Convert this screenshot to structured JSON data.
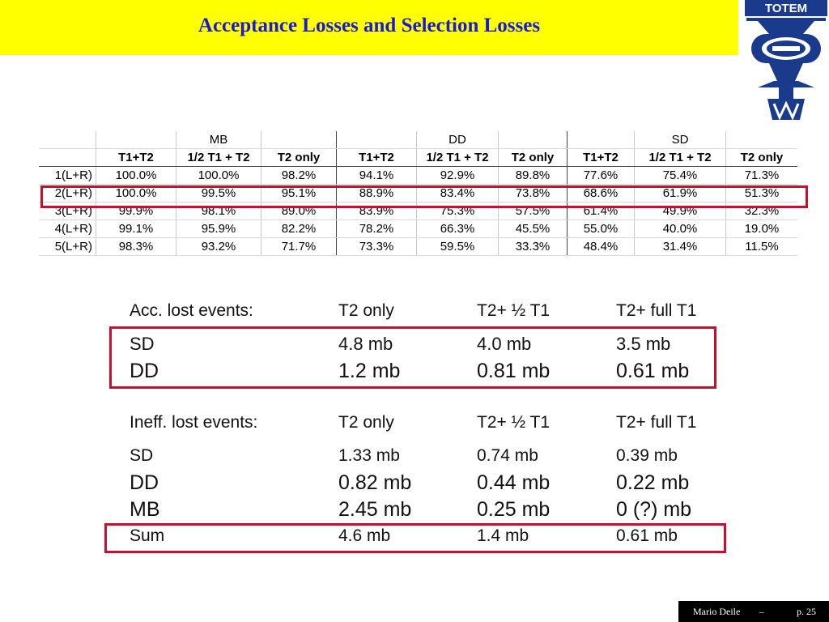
{
  "title": "Acceptance Losses and Selection Losses",
  "logo_text": "TOTEM",
  "acceptance_table": {
    "groups": [
      "MB",
      "DD",
      "SD"
    ],
    "subheaders": [
      "T1+T2",
      "1/2 T1 + T2",
      "T2 only",
      "T1+T2",
      "1/2 T1 + T2",
      "T2 only",
      "T1+T2",
      "1/2 T1 + T2",
      "T2 only"
    ],
    "rows": [
      {
        "label": "1(L+R)",
        "values": [
          "100.0%",
          "100.0%",
          "98.2%",
          "94.1%",
          "92.9%",
          "89.8%",
          "77.6%",
          "75.4%",
          "71.3%"
        ]
      },
      {
        "label": "2(L+R)",
        "values": [
          "100.0%",
          "99.5%",
          "95.1%",
          "88.9%",
          "83.4%",
          "73.8%",
          "68.6%",
          "61.9%",
          "51.3%"
        ]
      },
      {
        "label": "3(L+R)",
        "values": [
          "99.9%",
          "98.1%",
          "89.0%",
          "83.9%",
          "75.3%",
          "57.5%",
          "61.4%",
          "49.9%",
          "32.3%"
        ]
      },
      {
        "label": "4(L+R)",
        "values": [
          "99.1%",
          "95.9%",
          "82.2%",
          "78.2%",
          "66.3%",
          "45.5%",
          "55.0%",
          "40.0%",
          "19.0%"
        ]
      },
      {
        "label": "5(L+R)",
        "values": [
          "98.3%",
          "93.2%",
          "71.7%",
          "73.3%",
          "59.5%",
          "33.3%",
          "48.4%",
          "31.4%",
          "11.5%"
        ]
      }
    ]
  },
  "acc_lost": {
    "header": [
      "Acc. lost events:",
      "T2 only",
      "T2+ ½ T1",
      "T2+ full T1"
    ],
    "rows": [
      [
        "SD",
        "4.8 mb",
        "4.0 mb",
        "3.5 mb"
      ],
      [
        "DD",
        "1.2 mb",
        "0.81 mb",
        "0.61 mb"
      ]
    ]
  },
  "ineff_lost": {
    "header": [
      "Ineff. lost events:",
      "T2 only",
      "T2+ ½ T1",
      "T2+ full T1"
    ],
    "rows": [
      [
        "SD",
        "1.33 mb",
        "0.74 mb",
        "0.39 mb"
      ],
      [
        "DD",
        "0.82 mb",
        "0.44 mb",
        "0.22 mb"
      ],
      [
        "MB",
        "2.45 mb",
        "0.25 mb",
        "0 (?) mb"
      ],
      [
        "Sum",
        "4.6 mb",
        "1.4 mb",
        "0.61 mb"
      ]
    ]
  },
  "footer": {
    "author": "Mario Deile",
    "separator": "–",
    "page": "p. 25"
  },
  "colors": {
    "title_bg": "#ffff00",
    "title_text": "#1a1ad6",
    "highlight": "#c8102e",
    "logo": "#1a3a8c"
  }
}
